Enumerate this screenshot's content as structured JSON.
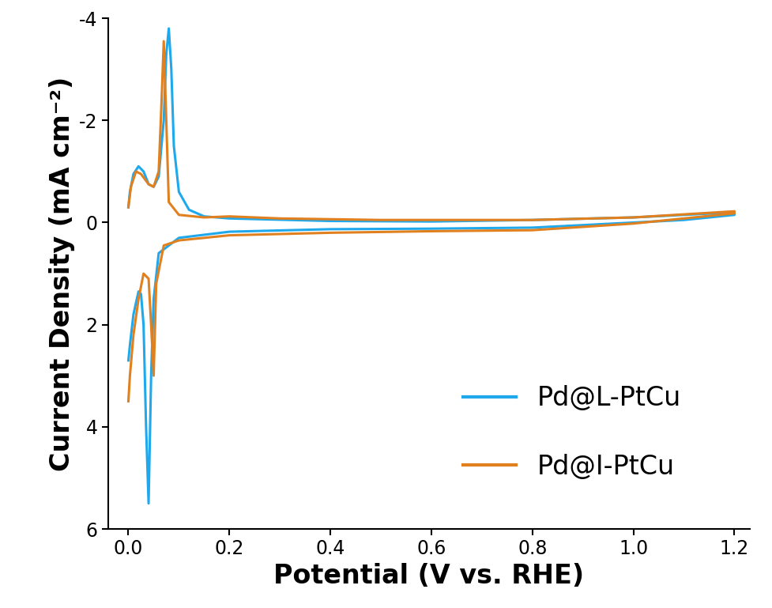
{
  "chart_data": {
    "type": "line",
    "x_label": "Potential (V vs. RHE)",
    "y_label": "Current Density (mA cm⁻²)",
    "xlim": [
      -0.04,
      1.23
    ],
    "ylim": [
      6,
      -4
    ],
    "xticks": [
      {
        "value": 0.0,
        "label": "0.0"
      },
      {
        "value": 0.2,
        "label": "0.2"
      },
      {
        "value": 0.4,
        "label": "0.4"
      },
      {
        "value": 0.6,
        "label": "0.6"
      },
      {
        "value": 0.8,
        "label": "0.8"
      },
      {
        "value": 1.0,
        "label": "1.0"
      },
      {
        "value": 1.2,
        "label": "1.2"
      }
    ],
    "yticks": [
      -4,
      -2,
      0,
      2,
      4,
      6
    ],
    "grid": false,
    "legend": "lower right",
    "series": [
      {
        "name": "Pd@L-PtCu",
        "color": "#1fa9ec",
        "line_style": "solid",
        "x": [
          0.0,
          0.003,
          0.01,
          0.02,
          0.03,
          0.04,
          0.05,
          0.06,
          0.07,
          0.075,
          0.08,
          0.085,
          0.09,
          0.1,
          0.12,
          0.15,
          0.2,
          0.4,
          0.6,
          0.8,
          1.0,
          1.1,
          1.2,
          1.2,
          1.1,
          1.0,
          0.8,
          0.6,
          0.4,
          0.2,
          0.1,
          0.06,
          0.05,
          0.045,
          0.04,
          0.035,
          0.03,
          0.025,
          0.02,
          0.01,
          0.003,
          0.0
        ],
        "values": [
          -0.3,
          -0.6,
          -0.95,
          -1.1,
          -1.0,
          -0.75,
          -0.7,
          -0.9,
          -2.0,
          -3.3,
          -3.8,
          -3.0,
          -1.5,
          -0.6,
          -0.25,
          -0.12,
          -0.08,
          -0.03,
          -0.02,
          -0.05,
          -0.1,
          -0.15,
          -0.2,
          -0.15,
          -0.05,
          0.0,
          0.1,
          0.12,
          0.13,
          0.18,
          0.3,
          0.6,
          1.5,
          3.0,
          5.5,
          4.0,
          2.0,
          1.4,
          1.35,
          1.8,
          2.4,
          2.7
        ]
      },
      {
        "name": "Pd@I-PtCu",
        "color": "#e0801f",
        "line_style": "solid",
        "x": [
          0.0,
          0.005,
          0.015,
          0.025,
          0.04,
          0.05,
          0.06,
          0.065,
          0.07,
          0.075,
          0.08,
          0.1,
          0.15,
          0.2,
          0.3,
          0.5,
          0.8,
          1.0,
          1.2,
          1.2,
          1.0,
          0.8,
          0.6,
          0.4,
          0.2,
          0.1,
          0.07,
          0.055,
          0.05,
          0.045,
          0.04,
          0.03,
          0.02,
          0.01,
          0.003,
          0.0
        ],
        "values": [
          -0.3,
          -0.7,
          -1.0,
          -0.95,
          -0.75,
          -0.7,
          -1.0,
          -2.2,
          -3.55,
          -2.0,
          -0.4,
          -0.15,
          -0.1,
          -0.12,
          -0.08,
          -0.05,
          -0.05,
          -0.1,
          -0.22,
          -0.18,
          0.02,
          0.15,
          0.17,
          0.2,
          0.25,
          0.35,
          0.45,
          1.2,
          3.0,
          2.0,
          1.1,
          1.0,
          1.5,
          2.2,
          3.0,
          3.5
        ]
      }
    ]
  }
}
